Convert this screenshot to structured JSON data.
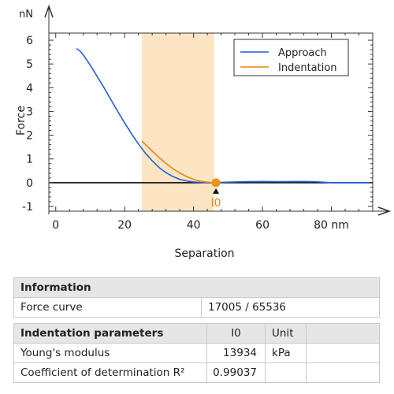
{
  "chart_data": {
    "type": "line",
    "xlabel": "Separation",
    "ylabel": "Force",
    "x_unit": "nm",
    "y_unit": "nN",
    "xlim": [
      -2,
      92
    ],
    "ylim": [
      -1.2,
      6.3
    ],
    "x_ticks": [
      0,
      20,
      40,
      60,
      80
    ],
    "x_tick_labels": [
      "0",
      "20",
      "40",
      "60",
      "80 nm"
    ],
    "y_ticks": [
      -1,
      0,
      1,
      2,
      3,
      4,
      5,
      6
    ],
    "y_tick_labels": [
      "-1",
      "0",
      "1",
      "2",
      "3",
      "4",
      "5",
      "6"
    ],
    "legend_position": "top-right",
    "shaded_region_x": [
      25,
      46
    ],
    "marker": {
      "label": "I0",
      "x": 46.5,
      "y": 0
    },
    "series": [
      {
        "name": "Approach",
        "color": "#1f5fd6",
        "x": [
          6,
          7,
          8,
          10,
          12,
          14,
          16,
          18,
          20,
          22,
          24,
          26,
          28,
          30,
          32,
          34,
          36,
          38,
          40,
          42,
          44,
          46,
          50,
          55,
          60,
          65,
          70,
          75,
          80,
          85,
          91
        ],
        "y": [
          5.65,
          5.55,
          5.38,
          4.95,
          4.48,
          4.0,
          3.5,
          3.0,
          2.52,
          2.06,
          1.63,
          1.25,
          0.92,
          0.64,
          0.42,
          0.26,
          0.14,
          0.07,
          0.03,
          0.01,
          0.0,
          0.0,
          0.02,
          0.04,
          0.05,
          0.04,
          0.05,
          0.04,
          0.0,
          0.0,
          0.0
        ]
      },
      {
        "name": "Indentation",
        "color": "#e8820e",
        "x": [
          25,
          28,
          30,
          32,
          34,
          36,
          38,
          40,
          42,
          44,
          46.5
        ],
        "y": [
          1.75,
          1.33,
          1.06,
          0.81,
          0.59,
          0.41,
          0.26,
          0.14,
          0.06,
          0.02,
          0.0
        ]
      }
    ]
  },
  "info_table": {
    "header": "Information",
    "rows": [
      {
        "label": "Force curve",
        "value": "17005 / 65536"
      }
    ]
  },
  "indent_table": {
    "header": "Indentation parameters",
    "col_value": "I0",
    "col_unit": "Unit",
    "rows": [
      {
        "label": "Young's modulus",
        "value": "13934",
        "unit": "kPa"
      },
      {
        "label": "Coefficient of determination R²",
        "value": "0.99037",
        "unit": ""
      }
    ]
  }
}
